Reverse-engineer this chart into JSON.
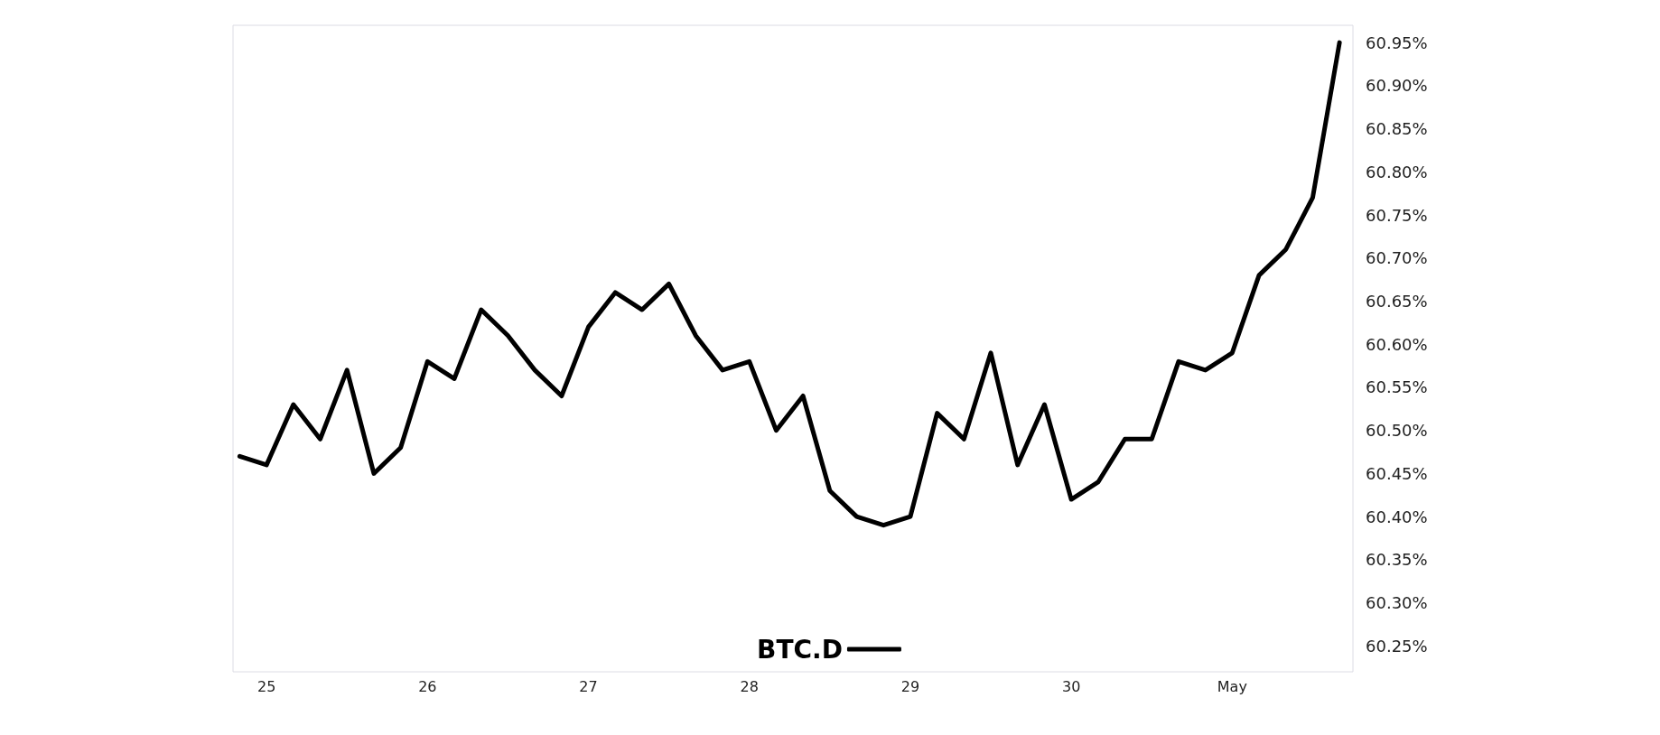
{
  "chart_data": {
    "type": "line",
    "x": [
      "--04-24T20:00",
      "--04-25T00:00",
      "--04-25T04:00",
      "--04-25T08:00",
      "--04-25T12:00",
      "--04-25T16:00",
      "--04-25T20:00",
      "--04-26T00:00",
      "--04-26T04:00",
      "--04-26T08:00",
      "--04-26T12:00",
      "--04-26T16:00",
      "--04-26T20:00",
      "--04-27T00:00",
      "--04-27T04:00",
      "--04-27T08:00",
      "--04-27T12:00",
      "--04-27T16:00",
      "--04-27T20:00",
      "--04-28T00:00",
      "--04-28T04:00",
      "--04-28T08:00",
      "--04-28T12:00",
      "--04-28T16:00",
      "--04-28T20:00",
      "--04-29T00:00",
      "--04-29T04:00",
      "--04-29T08:00",
      "--04-29T12:00",
      "--04-29T16:00",
      "--04-29T20:00",
      "--04-30T00:00",
      "--04-30T04:00",
      "--04-30T08:00",
      "--04-30T12:00",
      "--04-30T16:00",
      "--04-30T20:00",
      "--05-01T00:00",
      "--05-01T04:00",
      "--05-01T08:00",
      "--05-01T12:00",
      "--05-01T16:00"
    ],
    "series": [
      {
        "name": "BTC.D",
        "color": "#000000",
        "values": [
          60.47,
          60.46,
          60.53,
          60.49,
          60.57,
          60.45,
          60.48,
          60.58,
          60.56,
          60.64,
          60.61,
          60.57,
          60.54,
          60.62,
          60.66,
          60.64,
          60.67,
          60.61,
          60.57,
          60.58,
          60.5,
          60.54,
          60.43,
          60.4,
          60.39,
          60.4,
          60.52,
          60.49,
          60.59,
          60.46,
          60.53,
          60.42,
          60.44,
          60.49,
          60.49,
          60.58,
          60.57,
          60.59,
          60.68,
          60.71,
          60.77,
          60.95
        ]
      }
    ],
    "xlim": [
      "--04-24T19:00",
      "--05-01T18:00"
    ],
    "xticks": [
      {
        "value": "--04-25",
        "label": "25"
      },
      {
        "value": "--04-26",
        "label": "26"
      },
      {
        "value": "--04-27",
        "label": "27"
      },
      {
        "value": "--04-28",
        "label": "28"
      },
      {
        "value": "--04-29",
        "label": "29"
      },
      {
        "value": "--04-30",
        "label": "30"
      },
      {
        "value": "--05-01",
        "label": "May"
      }
    ],
    "ylim": [
      60.22,
      60.97
    ],
    "yticks": [
      {
        "value": 60.25,
        "label": "60.25%"
      },
      {
        "value": 60.3,
        "label": "60.30%"
      },
      {
        "value": 60.35,
        "label": "60.35%"
      },
      {
        "value": 60.4,
        "label": "60.40%"
      },
      {
        "value": 60.45,
        "label": "60.45%"
      },
      {
        "value": 60.5,
        "label": "60.50%"
      },
      {
        "value": 60.55,
        "label": "60.55%"
      },
      {
        "value": 60.6,
        "label": "60.60%"
      },
      {
        "value": 60.65,
        "label": "60.65%"
      },
      {
        "value": 60.7,
        "label": "60.70%"
      },
      {
        "value": 60.75,
        "label": "60.75%"
      },
      {
        "value": 60.8,
        "label": "60.80%"
      },
      {
        "value": 60.85,
        "label": "60.85%"
      },
      {
        "value": 60.9,
        "label": "60.90%"
      },
      {
        "value": 60.95,
        "label": "60.95%"
      }
    ],
    "grid": false,
    "legend": "bottom",
    "marker": "none",
    "line_style": "solid"
  }
}
